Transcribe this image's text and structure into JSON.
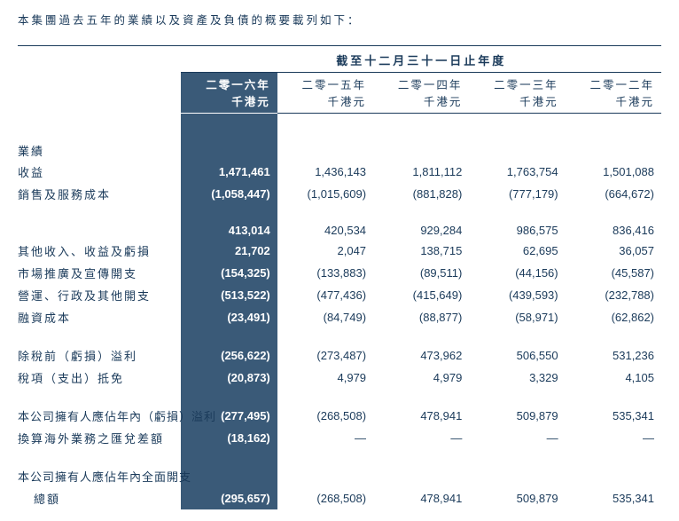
{
  "intro": "本集團過去五年的業績以及資產及負債的概要載列如下：",
  "header": {
    "span_title": "截至十二月三十一日止年度",
    "years": [
      "二零一六年",
      "二零一五年",
      "二零一四年",
      "二零一三年",
      "二零一二年"
    ],
    "unit": "千港元"
  },
  "sections": {
    "results_label": "業績",
    "rows1": [
      {
        "label": "收益",
        "v": [
          "1,471,461",
          "1,436,143",
          "1,811,112",
          "1,763,754",
          "1,501,088"
        ]
      },
      {
        "label": "銷售及服務成本",
        "v": [
          "(1,058,447)",
          "(1,015,609)",
          "(881,828)",
          "(777,179)",
          "(664,672)"
        ]
      }
    ],
    "rows2": [
      {
        "label": "",
        "v": [
          "413,014",
          "420,534",
          "929,284",
          "986,575",
          "836,416"
        ]
      },
      {
        "label": "其他收入、收益及虧損",
        "v": [
          "21,702",
          "2,047",
          "138,715",
          "62,695",
          "36,057"
        ]
      },
      {
        "label": "市場推廣及宣傳開支",
        "v": [
          "(154,325)",
          "(133,883)",
          "(89,511)",
          "(44,156)",
          "(45,587)"
        ]
      },
      {
        "label": "營運、行政及其他開支",
        "v": [
          "(513,522)",
          "(477,436)",
          "(415,649)",
          "(439,593)",
          "(232,788)"
        ]
      },
      {
        "label": "融資成本",
        "v": [
          "(23,491)",
          "(84,749)",
          "(88,877)",
          "(58,971)",
          "(62,862)"
        ]
      }
    ],
    "rows3": [
      {
        "label": "除稅前（虧損）溢利",
        "v": [
          "(256,622)",
          "(273,487)",
          "473,962",
          "506,550",
          "531,236"
        ]
      },
      {
        "label": "稅項（支出）抵免",
        "v": [
          "(20,873)",
          "4,979",
          "4,979",
          "3,329",
          "4,105"
        ]
      }
    ],
    "rows4": [
      {
        "label": "本公司擁有人應佔年內（虧損）溢利",
        "v": [
          "(277,495)",
          "(268,508)",
          "478,941",
          "509,879",
          "535,341"
        ]
      },
      {
        "label": "換算海外業務之匯兌差額",
        "v": [
          "(18,162)",
          "—",
          "—",
          "—",
          "—"
        ]
      }
    ],
    "rows5_label1": "本公司擁有人應佔年內全面開支",
    "rows5_label2": "總額",
    "rows5_v": [
      "(295,657)",
      "(268,508)",
      "478,941",
      "509,879",
      "535,341"
    ]
  },
  "colors": {
    "text": "#1a3a5a",
    "highlight_bg": "#3a5a78",
    "highlight_fg": "#ffffff",
    "border": "#1a3a5a"
  }
}
